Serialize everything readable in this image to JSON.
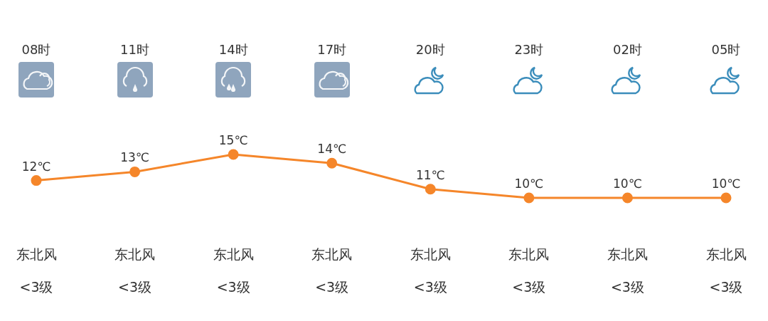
{
  "chart_data": {
    "type": "line",
    "categories": [
      "08时",
      "11时",
      "14时",
      "17时",
      "20时",
      "23时",
      "02时",
      "05时"
    ],
    "series": [
      {
        "color": "#f5862a",
        "values": [
          12,
          13,
          15,
          14,
          11,
          10,
          10,
          10
        ],
        "value_labels": [
          "12℃",
          "13℃",
          "15℃",
          "14℃",
          "11℃",
          "10℃",
          "10℃",
          "10℃"
        ]
      }
    ],
    "marker": "circle",
    "line_style": "solid",
    "grid": false,
    "legend": false,
    "tick_labels": "x",
    "annotations": [
      "东北风",
      "<3级",
      "东北风",
      "<3级",
      "东北风",
      "<3级",
      "东北风",
      "<3级",
      "东北风",
      "<3级",
      "东北风",
      "<3级",
      "东北风",
      "<3级",
      "东北风",
      "<3级"
    ]
  }
}
